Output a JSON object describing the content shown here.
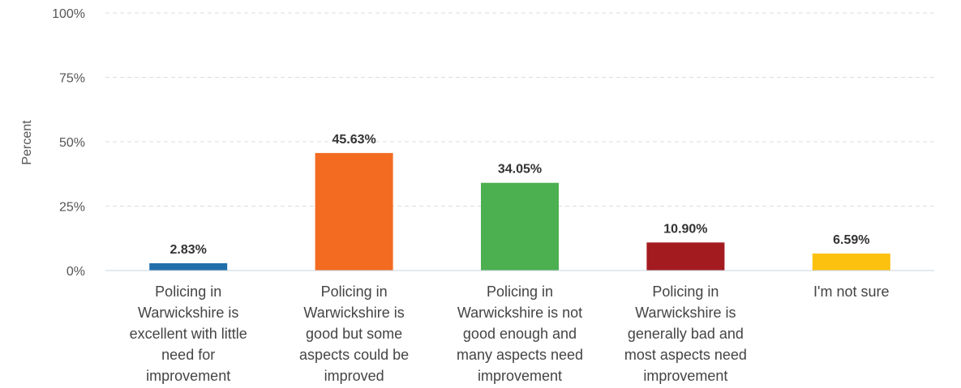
{
  "chart_data": {
    "type": "bar",
    "title": "",
    "xlabel": "",
    "ylabel": "Percent",
    "ylim": [
      0,
      100
    ],
    "y_ticks": [
      "0%",
      "25%",
      "50%",
      "75%",
      "100%"
    ],
    "y_tick_values": [
      0,
      25,
      50,
      75,
      100
    ],
    "grid": true,
    "legend": "none",
    "categories": [
      "Policing in Warwickshire is excellent with little need for improvement",
      "Policing in Warwickshire is good but some aspects could be improved",
      "Policing in Warwickshire is not good enough and many aspects need improvement",
      "Policing in Warwickshire is generally bad and most aspects need improvement",
      "I'm not sure"
    ],
    "category_lines": [
      [
        "Policing in",
        "Warwickshire is",
        "excellent with little",
        "need for",
        "improvement"
      ],
      [
        "Policing in",
        "Warwickshire is",
        "good but some",
        "aspects could be",
        "improved"
      ],
      [
        "Policing in",
        "Warwickshire is not",
        "good enough and",
        "many aspects need",
        "improvement"
      ],
      [
        "Policing in",
        "Warwickshire is",
        "generally bad and",
        "most aspects need",
        "improvement"
      ],
      [
        "I'm not sure"
      ]
    ],
    "values": [
      2.83,
      45.63,
      34.05,
      10.9,
      6.59
    ],
    "value_labels": [
      "2.83%",
      "45.63%",
      "34.05%",
      "10.90%",
      "6.59%"
    ],
    "colors": [
      "#1f6fab",
      "#f26b21",
      "#4caf50",
      "#a31b1f",
      "#fcc10e"
    ]
  }
}
